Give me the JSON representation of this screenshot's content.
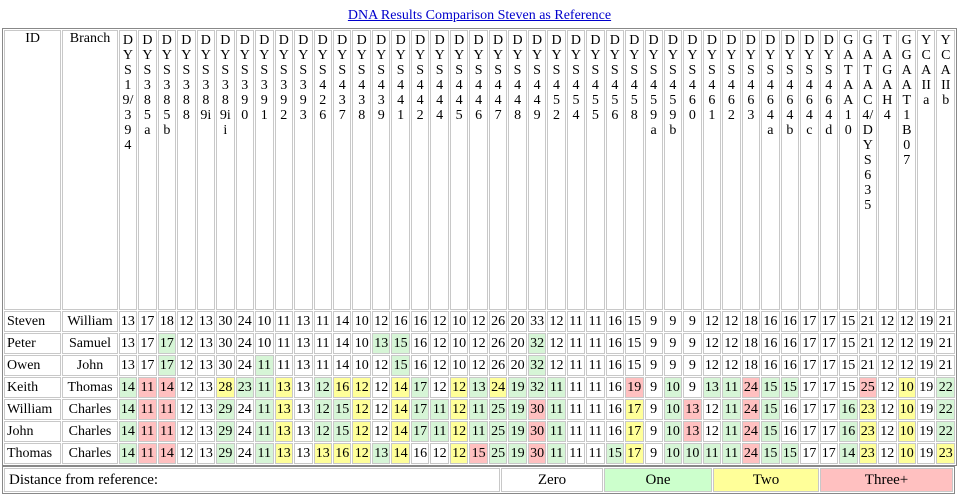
{
  "title": "DNA Results Comparison Steven as Reference",
  "headers": {
    "id": "ID",
    "branch": "Branch"
  },
  "markers": [
    "DYS19/394",
    "DYS385a",
    "DYS385b",
    "DYS388",
    "DYS389i",
    "DYS389ii",
    "DYS390",
    "DYS391",
    "DYS392",
    "DYS393",
    "DYS426",
    "DYS437",
    "DYS438",
    "DYS439",
    "DYS441",
    "DYS442",
    "DYS444",
    "DYS445",
    "DYS446",
    "DYS447",
    "DYS448",
    "DYS449",
    "DYS452",
    "DYS454",
    "DYS455",
    "DYS456",
    "DYS458",
    "DYS459a",
    "DYS459b",
    "DYS460",
    "DYS461",
    "DYS462",
    "DYS463",
    "DYS464a",
    "DYS464b",
    "DYS464c",
    "DYS464d",
    "GATAA10",
    "GATAC4/DYS635",
    "TAGAH4",
    "GGAAT1B07",
    "YCAIIa",
    "YCAIIb"
  ],
  "rows": [
    {
      "id": "Steven",
      "branch": "William",
      "values": [
        13,
        17,
        18,
        12,
        13,
        30,
        24,
        10,
        11,
        13,
        11,
        14,
        10,
        12,
        16,
        16,
        12,
        10,
        12,
        26,
        20,
        33,
        12,
        11,
        11,
        16,
        15,
        9,
        9,
        9,
        12,
        12,
        18,
        16,
        16,
        17,
        17,
        15,
        21,
        12,
        12,
        19,
        21
      ],
      "dist": [
        0,
        0,
        0,
        0,
        0,
        0,
        0,
        0,
        0,
        0,
        0,
        0,
        0,
        0,
        0,
        0,
        0,
        0,
        0,
        0,
        0,
        0,
        0,
        0,
        0,
        0,
        0,
        0,
        0,
        0,
        0,
        0,
        0,
        0,
        0,
        0,
        0,
        0,
        0,
        0,
        0,
        0,
        0
      ]
    },
    {
      "id": "Peter",
      "branch": "Samuel",
      "values": [
        13,
        17,
        17,
        12,
        13,
        30,
        24,
        10,
        11,
        13,
        11,
        14,
        10,
        13,
        15,
        16,
        12,
        10,
        12,
        26,
        20,
        32,
        12,
        11,
        11,
        16,
        15,
        9,
        9,
        9,
        12,
        12,
        18,
        16,
        16,
        17,
        17,
        15,
        21,
        12,
        12,
        19,
        21
      ],
      "dist": [
        0,
        0,
        1,
        0,
        0,
        0,
        0,
        0,
        0,
        0,
        0,
        0,
        0,
        1,
        1,
        0,
        0,
        0,
        0,
        0,
        0,
        1,
        0,
        0,
        0,
        0,
        0,
        0,
        0,
        0,
        0,
        0,
        0,
        0,
        0,
        0,
        0,
        0,
        0,
        0,
        0,
        0,
        0
      ]
    },
    {
      "id": "Owen",
      "branch": "John",
      "values": [
        13,
        17,
        17,
        12,
        13,
        30,
        24,
        11,
        11,
        13,
        11,
        14,
        10,
        12,
        15,
        16,
        12,
        10,
        12,
        26,
        20,
        32,
        12,
        11,
        11,
        16,
        15,
        9,
        9,
        9,
        12,
        12,
        18,
        16,
        16,
        17,
        17,
        15,
        21,
        12,
        12,
        19,
        21
      ],
      "dist": [
        0,
        0,
        1,
        0,
        0,
        0,
        0,
        1,
        0,
        0,
        0,
        0,
        0,
        0,
        1,
        0,
        0,
        0,
        0,
        0,
        0,
        1,
        0,
        0,
        0,
        0,
        0,
        0,
        0,
        0,
        0,
        0,
        0,
        0,
        0,
        0,
        0,
        0,
        0,
        0,
        0,
        0,
        0
      ]
    },
    {
      "id": "Keith",
      "branch": "Thomas",
      "values": [
        14,
        11,
        14,
        12,
        13,
        28,
        23,
        11,
        13,
        13,
        12,
        16,
        12,
        12,
        14,
        17,
        12,
        12,
        13,
        24,
        19,
        32,
        11,
        11,
        11,
        16,
        19,
        9,
        10,
        9,
        13,
        11,
        24,
        15,
        15,
        17,
        17,
        15,
        25,
        12,
        10,
        19,
        22
      ],
      "dist": [
        1,
        3,
        3,
        0,
        0,
        2,
        1,
        1,
        2,
        0,
        1,
        2,
        2,
        0,
        2,
        1,
        0,
        2,
        1,
        2,
        1,
        1,
        1,
        0,
        0,
        0,
        3,
        0,
        1,
        0,
        1,
        1,
        3,
        1,
        1,
        0,
        0,
        0,
        3,
        0,
        2,
        0,
        1
      ]
    },
    {
      "id": "William",
      "branch": "Charles",
      "values": [
        14,
        11,
        11,
        12,
        13,
        29,
        24,
        11,
        13,
        13,
        12,
        15,
        12,
        12,
        14,
        17,
        11,
        12,
        11,
        25,
        19,
        30,
        11,
        11,
        11,
        16,
        17,
        9,
        10,
        13,
        12,
        11,
        24,
        15,
        16,
        17,
        17,
        16,
        23,
        12,
        10,
        19,
        22
      ],
      "dist": [
        1,
        3,
        3,
        0,
        0,
        1,
        0,
        1,
        2,
        0,
        1,
        1,
        2,
        0,
        2,
        1,
        1,
        2,
        1,
        1,
        1,
        3,
        1,
        0,
        0,
        0,
        2,
        0,
        1,
        3,
        0,
        1,
        3,
        1,
        0,
        0,
        0,
        1,
        2,
        0,
        2,
        0,
        1
      ]
    },
    {
      "id": "John",
      "branch": "Charles",
      "values": [
        14,
        11,
        11,
        12,
        13,
        29,
        24,
        11,
        13,
        13,
        12,
        15,
        12,
        12,
        14,
        17,
        11,
        12,
        11,
        25,
        19,
        30,
        11,
        11,
        11,
        16,
        17,
        9,
        10,
        13,
        12,
        11,
        24,
        15,
        16,
        17,
        17,
        16,
        23,
        12,
        10,
        19,
        22
      ],
      "dist": [
        1,
        3,
        3,
        0,
        0,
        1,
        0,
        1,
        2,
        0,
        1,
        1,
        2,
        0,
        2,
        1,
        1,
        2,
        1,
        1,
        1,
        3,
        1,
        0,
        0,
        0,
        2,
        0,
        1,
        3,
        0,
        1,
        3,
        1,
        0,
        0,
        0,
        1,
        2,
        0,
        2,
        0,
        1
      ]
    },
    {
      "id": "Thomas",
      "branch": "Charles",
      "values": [
        14,
        11,
        14,
        12,
        13,
        29,
        24,
        11,
        13,
        13,
        13,
        16,
        12,
        13,
        14,
        16,
        12,
        12,
        15,
        25,
        19,
        30,
        11,
        11,
        11,
        15,
        17,
        9,
        10,
        10,
        11,
        11,
        24,
        15,
        15,
        17,
        17,
        14,
        23,
        12,
        10,
        19,
        23
      ],
      "dist": [
        1,
        3,
        3,
        0,
        0,
        1,
        0,
        1,
        2,
        0,
        2,
        2,
        2,
        1,
        2,
        0,
        0,
        2,
        3,
        1,
        1,
        3,
        1,
        0,
        0,
        1,
        2,
        0,
        1,
        1,
        1,
        1,
        3,
        1,
        1,
        0,
        0,
        1,
        2,
        0,
        2,
        0,
        2
      ]
    }
  ],
  "legend": {
    "label": "Distance from reference:",
    "zero": "Zero",
    "one": "One",
    "two": "Two",
    "three": "Three+"
  }
}
